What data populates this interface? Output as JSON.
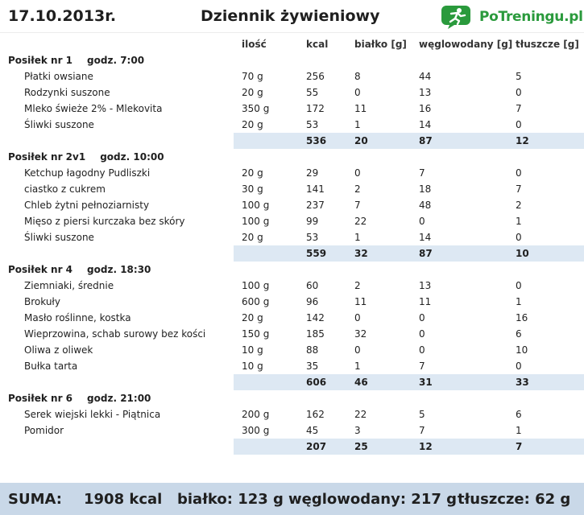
{
  "header": {
    "date": "17.10.2013r.",
    "title": "Dziennik żywieniowy",
    "logo_text": "PoTreningu",
    "logo_domain": ".pl",
    "logo_color": "#2a9a3c"
  },
  "columns": {
    "qty": "ilość",
    "kcal": "kcal",
    "protein": "białko [g]",
    "carbs": "węglowodany [g]",
    "fat": "tłuszcze [g]"
  },
  "meals": [
    {
      "name": "Posiłek nr 1",
      "time": "godz. 7:00",
      "items": [
        {
          "name": "Płatki owsiane",
          "qty": "70 g",
          "kcal": "256",
          "protein": "8",
          "carbs": "44",
          "fat": "5"
        },
        {
          "name": "Rodzynki suszone",
          "qty": "20 g",
          "kcal": "55",
          "protein": "0",
          "carbs": "13",
          "fat": "0"
        },
        {
          "name": "Mleko świeże 2% - Mlekovita",
          "qty": "350 g",
          "kcal": "172",
          "protein": "11",
          "carbs": "16",
          "fat": "7"
        },
        {
          "name": "Śliwki suszone",
          "qty": "20 g",
          "kcal": "53",
          "protein": "1",
          "carbs": "14",
          "fat": "0"
        }
      ],
      "total": {
        "kcal": "536",
        "protein": "20",
        "carbs": "87",
        "fat": "12"
      }
    },
    {
      "name": "Posiłek nr 2v1",
      "time": "godz. 10:00",
      "items": [
        {
          "name": "Ketchup łagodny Pudliszki",
          "qty": "20 g",
          "kcal": "29",
          "protein": "0",
          "carbs": "7",
          "fat": "0"
        },
        {
          "name": "ciastko z cukrem",
          "qty": "30 g",
          "kcal": "141",
          "protein": "2",
          "carbs": "18",
          "fat": "7"
        },
        {
          "name": "Chleb żytni pełnoziarnisty",
          "qty": "100 g",
          "kcal": "237",
          "protein": "7",
          "carbs": "48",
          "fat": "2"
        },
        {
          "name": "Mięso z piersi kurczaka bez skóry",
          "qty": "100 g",
          "kcal": "99",
          "protein": "22",
          "carbs": "0",
          "fat": "1"
        },
        {
          "name": "Śliwki suszone",
          "qty": "20 g",
          "kcal": "53",
          "protein": "1",
          "carbs": "14",
          "fat": "0"
        }
      ],
      "total": {
        "kcal": "559",
        "protein": "32",
        "carbs": "87",
        "fat": "10"
      }
    },
    {
      "name": "Posiłek nr 4",
      "time": "godz. 18:30",
      "items": [
        {
          "name": "Ziemniaki, średnie",
          "qty": "100 g",
          "kcal": "60",
          "protein": "2",
          "carbs": "13",
          "fat": "0"
        },
        {
          "name": "Brokuły",
          "qty": "600 g",
          "kcal": "96",
          "protein": "11",
          "carbs": "11",
          "fat": "1"
        },
        {
          "name": "Masło roślinne, kostka",
          "qty": "20 g",
          "kcal": "142",
          "protein": "0",
          "carbs": "0",
          "fat": "16"
        },
        {
          "name": "Wieprzowina, schab surowy bez kości",
          "qty": "150 g",
          "kcal": "185",
          "protein": "32",
          "carbs": "0",
          "fat": "6"
        },
        {
          "name": "Oliwa z oliwek",
          "qty": "10 g",
          "kcal": "88",
          "protein": "0",
          "carbs": "0",
          "fat": "10"
        },
        {
          "name": "Bułka tarta",
          "qty": "10 g",
          "kcal": "35",
          "protein": "1",
          "carbs": "7",
          "fat": "0"
        }
      ],
      "total": {
        "kcal": "606",
        "protein": "46",
        "carbs": "31",
        "fat": "33"
      }
    },
    {
      "name": "Posiłek nr 6",
      "time": "godz. 21:00",
      "items": [
        {
          "name": "Serek wiejski lekki - Piątnica",
          "qty": "200 g",
          "kcal": "162",
          "protein": "22",
          "carbs": "5",
          "fat": "6"
        },
        {
          "name": "Pomidor",
          "qty": "300 g",
          "kcal": "45",
          "protein": "3",
          "carbs": "7",
          "fat": "1"
        }
      ],
      "total": {
        "kcal": "207",
        "protein": "25",
        "carbs": "12",
        "fat": "7"
      }
    }
  ],
  "summary": {
    "label": "SUMA:",
    "kcal": "1908 kcal",
    "protein": "białko: 123 g",
    "carbs": "węglowodany: 217 g",
    "fat": "tłuszcze: 62 g"
  },
  "colors": {
    "total_bar": "#dde8f3",
    "footer": "#c9d8e8"
  }
}
